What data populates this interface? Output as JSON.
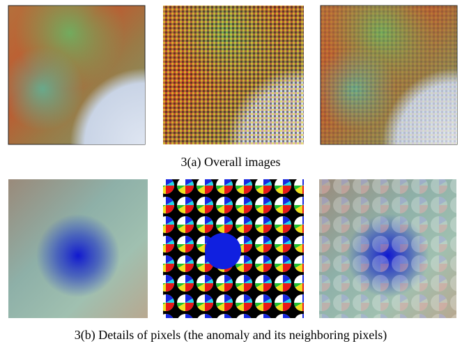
{
  "captions": {
    "overall": "3(a) Overall images",
    "details": "3(b) Details of pixels (the anomaly and its neighboring pixels)"
  }
}
